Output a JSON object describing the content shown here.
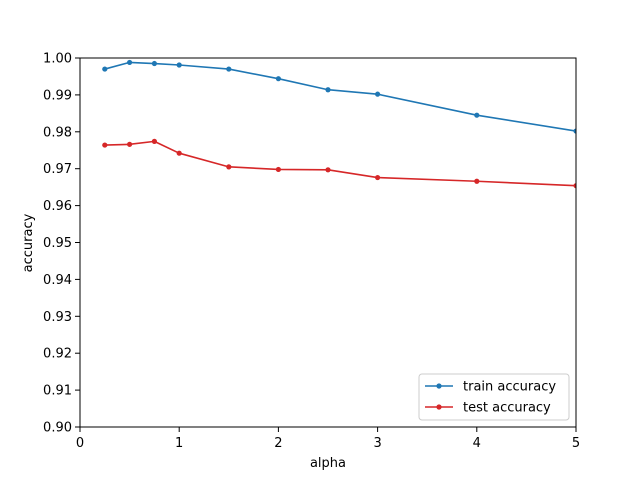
{
  "chart_data": {
    "type": "line",
    "xlabel": "alpha",
    "ylabel": "accuracy",
    "xlim": [
      0,
      5
    ],
    "ylim": [
      0.9,
      1.0
    ],
    "xticks": [
      0,
      1,
      2,
      3,
      4,
      5
    ],
    "yticks": [
      0.9,
      0.91,
      0.92,
      0.93,
      0.94,
      0.95,
      0.96,
      0.97,
      0.98,
      0.99,
      1.0
    ],
    "x": [
      0.25,
      0.5,
      0.75,
      1.0,
      1.5,
      2.0,
      2.5,
      3.0,
      4.0,
      5.0
    ],
    "series": [
      {
        "name": "train accuracy",
        "color": "#1f77b4",
        "values": [
          0.997,
          0.9988,
          0.9985,
          0.9981,
          0.997,
          0.9944,
          0.9914,
          0.9902,
          0.9845,
          0.9802
        ]
      },
      {
        "name": "test accuracy",
        "color": "#d62728",
        "values": [
          0.9764,
          0.9766,
          0.9774,
          0.9742,
          0.9705,
          0.9698,
          0.9697,
          0.9676,
          0.9666,
          0.9654
        ]
      }
    ],
    "legend_position": "lower-right",
    "grid": false
  }
}
